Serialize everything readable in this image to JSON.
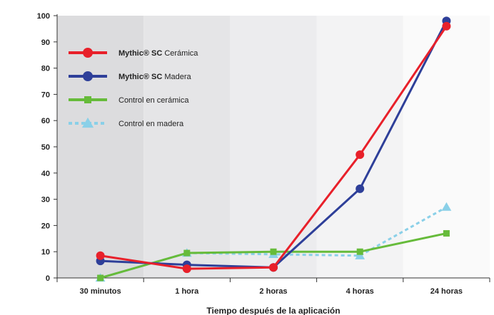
{
  "chart_data": {
    "type": "line",
    "categories": [
      "30 minutos",
      "1 hora",
      "2 horas",
      "4 horas",
      "24 horas"
    ],
    "xlabel": "Tiempo después de la aplicación",
    "ylabel": "",
    "ylim": [
      0,
      100
    ],
    "yticks": [
      0,
      10,
      20,
      30,
      40,
      50,
      60,
      70,
      80,
      90,
      100
    ],
    "grid": false,
    "legend_position": "top-left",
    "series": [
      {
        "name_bold": "Mythic® SC",
        "name_rest": " Cerámica",
        "color": "#e8202a",
        "marker": "circle",
        "dashed": false,
        "values": [
          8.5,
          3.5,
          4,
          47,
          96
        ]
      },
      {
        "name_bold": "Mythic® SC",
        "name_rest": " Madera",
        "color": "#2e3f99",
        "marker": "circle",
        "dashed": false,
        "values": [
          6.5,
          5,
          4,
          34,
          98
        ]
      },
      {
        "name_bold": "",
        "name_rest": "Control en cerámica",
        "color": "#66bb3a",
        "marker": "square",
        "dashed": false,
        "values": [
          0,
          9.5,
          10,
          10,
          17
        ]
      },
      {
        "name_bold": "",
        "name_rest": "Control en madera",
        "color": "#8ad0e8",
        "marker": "triangle",
        "dashed": true,
        "values": [
          0,
          9.5,
          9,
          8.5,
          27
        ]
      }
    ]
  }
}
